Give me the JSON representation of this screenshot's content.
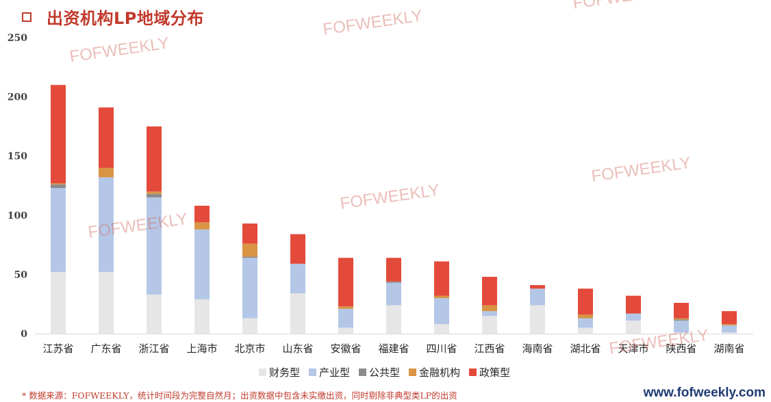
{
  "header": {
    "title": "出资机构LP地域分布",
    "icon": "square-outline-icon"
  },
  "footnote": "* 数据来源：FOFWEEKLY，统计时间段为完整自然月；出资数据中包含未实缴出资，同时剔除非典型类LP的出资",
  "website": "www.fofweekly.com",
  "watermark": "FOFWEEKLY",
  "chart_data": {
    "type": "bar",
    "stacked": true,
    "categories": [
      "江苏省",
      "广东省",
      "浙江省",
      "上海市",
      "北京市",
      "山东省",
      "安徽省",
      "福建省",
      "四川省",
      "江西省",
      "海南省",
      "湖北省",
      "天津市",
      "陕西省",
      "湖南省"
    ],
    "series": [
      {
        "name": "财务型",
        "color": "#e6e6e6",
        "values": [
          52,
          52,
          33,
          29,
          13,
          34,
          5,
          24,
          8,
          15,
          24,
          5,
          11,
          1,
          1
        ]
      },
      {
        "name": "产业型",
        "color": "#b4c7e7",
        "values": [
          71,
          80,
          82,
          59,
          51,
          25,
          16,
          19,
          22,
          4,
          14,
          8,
          6,
          10,
          6
        ]
      },
      {
        "name": "公共型",
        "color": "#8c8c8c",
        "values": [
          3,
          0,
          3,
          0,
          1,
          0,
          0,
          1,
          0,
          0,
          0,
          0,
          0,
          1,
          0
        ]
      },
      {
        "name": "金融机构",
        "color": "#d99444",
        "values": [
          1,
          8,
          2,
          6,
          11,
          0,
          2,
          0,
          2,
          5,
          0,
          3,
          0,
          1,
          1
        ]
      },
      {
        "name": "政策型",
        "color": "#e34a3b",
        "values": [
          83,
          51,
          55,
          14,
          17,
          25,
          41,
          20,
          29,
          24,
          3,
          22,
          15,
          13,
          11
        ]
      }
    ],
    "ylim": [
      0,
      250
    ],
    "yticks": [
      0,
      50,
      100,
      150,
      200,
      250
    ],
    "grid": false,
    "legend": "bottom"
  }
}
